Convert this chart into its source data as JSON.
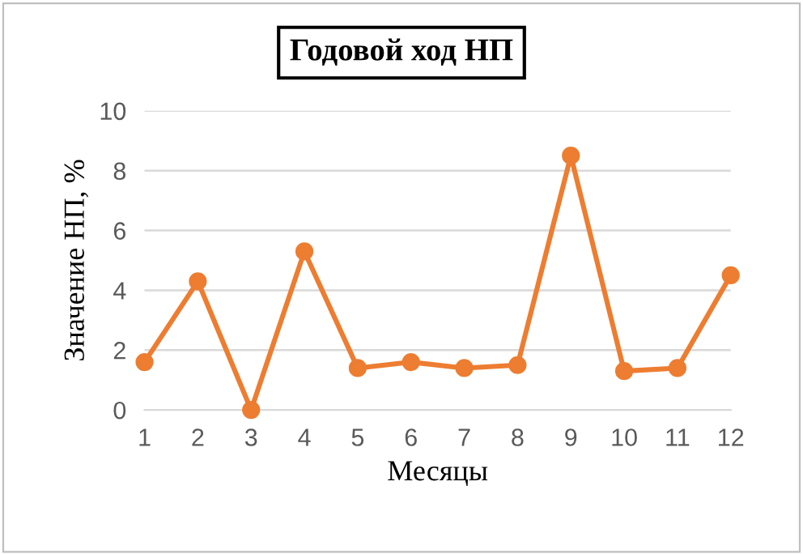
{
  "chart_data": {
    "type": "line",
    "title": "Годовой ход НП",
    "xlabel": "Месяцы",
    "ylabel": "Значение НП, %",
    "categories": [
      "1",
      "2",
      "3",
      "4",
      "5",
      "6",
      "7",
      "8",
      "9",
      "10",
      "11",
      "12"
    ],
    "series": [
      {
        "color": "#ed7d31",
        "values": [
          1.6,
          4.3,
          0,
          5.3,
          1.4,
          1.6,
          1.4,
          1.5,
          8.5,
          1.3,
          1.4,
          4.5
        ]
      }
    ],
    "ylim": [
      0,
      10
    ],
    "yticks": [
      0,
      2,
      4,
      6,
      8,
      10
    ],
    "grid": "y",
    "marker": "circle",
    "line_style": "solid"
  }
}
